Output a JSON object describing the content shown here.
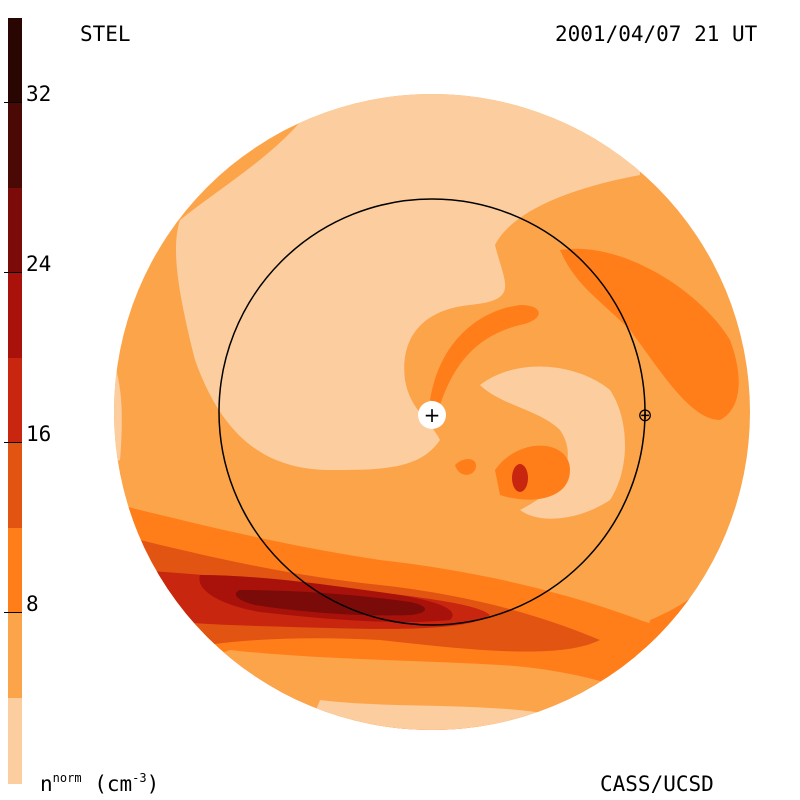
{
  "header": {
    "left_label": "STEL",
    "right_label": "2001/04/07 21 UT"
  },
  "footer": {
    "unit_base": "n",
    "unit_sup": "norm",
    "unit_paren_open": " (cm",
    "unit_paren_sup": "-3",
    "unit_paren_close": ")",
    "credit": "CASS/UCSD"
  },
  "colorbar": {
    "ticks": [
      "32",
      "24",
      "16",
      "8"
    ],
    "levels": [
      {
        "color": "#2a0603"
      },
      {
        "color": "#4b0906"
      },
      {
        "color": "#7a0b08"
      },
      {
        "color": "#a8120b"
      },
      {
        "color": "#c8260e"
      },
      {
        "color": "#e25412"
      },
      {
        "color": "#ff7e1a"
      },
      {
        "color": "#fca44a"
      },
      {
        "color": "#fccd9e"
      }
    ]
  },
  "map": {
    "sun_symbol": "+",
    "earth_symbol": "⊕",
    "colors": {
      "lightest": "#fccd9e",
      "light": "#fca44a",
      "mid": "#ff7e1a",
      "dark": "#e25412",
      "darker": "#c8260e",
      "deep": "#a8120b",
      "deepest": "#7a0b08"
    }
  }
}
